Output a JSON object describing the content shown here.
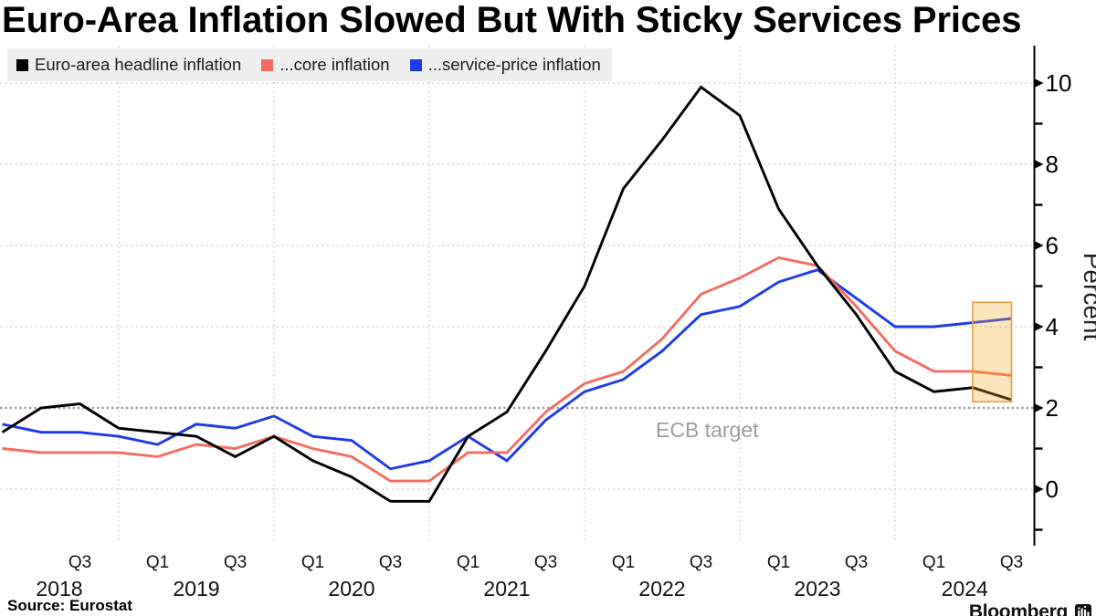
{
  "title": "Euro-Area Inflation Slowed But With Sticky Services Prices",
  "source": "Source: Eurostat",
  "brand": {
    "name": "Bloomberg"
  },
  "ecb_label": "ECB target",
  "legend": {
    "items": [
      {
        "label": "Euro-area headline inflation",
        "color": "#000000"
      },
      {
        "label": "...core inflation",
        "color": "#F66B60"
      },
      {
        "label": "...service-price inflation",
        "color": "#1E3BE8"
      }
    ]
  },
  "y_axis": {
    "title": "Percent",
    "major_ticks": [
      0,
      2,
      4,
      6,
      8,
      10
    ],
    "minor_ticks": [
      -1,
      1,
      3,
      5,
      7,
      9
    ]
  },
  "x_axis": {
    "quarter_labels": [
      "Q3",
      "Q1",
      "Q3",
      "Q1",
      "Q3",
      "Q1",
      "Q3",
      "Q1",
      "Q3",
      "Q1",
      "Q3",
      "Q1",
      "Q3"
    ],
    "year_labels": [
      "2018",
      "2019",
      "2020",
      "2021",
      "2022",
      "2023",
      "2024"
    ]
  },
  "chart_data": {
    "type": "line",
    "x": [
      "2018-03",
      "2018-06",
      "2018-09",
      "2018-12",
      "2019-03",
      "2019-06",
      "2019-09",
      "2019-12",
      "2020-03",
      "2020-06",
      "2020-09",
      "2020-12",
      "2021-03",
      "2021-06",
      "2021-09",
      "2021-12",
      "2022-03",
      "2022-06",
      "2022-09",
      "2022-12",
      "2023-03",
      "2023-06",
      "2023-09",
      "2023-12",
      "2024-03",
      "2024-06",
      "2024-08"
    ],
    "series": [
      {
        "name": "Euro-area headline inflation",
        "color": "#000000",
        "values": [
          1.4,
          2.0,
          2.1,
          1.5,
          1.4,
          1.3,
          0.8,
          1.3,
          0.7,
          0.3,
          -0.3,
          -0.3,
          1.3,
          1.9,
          3.4,
          5.0,
          7.4,
          8.6,
          9.9,
          9.2,
          6.9,
          5.5,
          4.3,
          2.9,
          2.4,
          2.5,
          2.2
        ]
      },
      {
        "name": "...core inflation",
        "color": "#F66B60",
        "values": [
          1.0,
          0.9,
          0.9,
          0.9,
          0.8,
          1.1,
          1.0,
          1.3,
          1.0,
          0.8,
          0.2,
          0.2,
          0.9,
          0.9,
          1.9,
          2.6,
          2.9,
          3.7,
          4.8,
          5.2,
          5.7,
          5.5,
          4.5,
          3.4,
          2.9,
          2.9,
          2.8
        ]
      },
      {
        "name": "...service-price inflation",
        "color": "#1E3BE8",
        "values": [
          1.6,
          1.4,
          1.4,
          1.3,
          1.1,
          1.6,
          1.5,
          1.8,
          1.3,
          1.2,
          0.5,
          0.7,
          1.3,
          0.7,
          1.7,
          2.4,
          2.7,
          3.4,
          4.3,
          4.5,
          5.1,
          5.4,
          4.7,
          4.0,
          4.0,
          4.1,
          4.2
        ]
      }
    ],
    "ylim": [
      -1.3,
      11
    ],
    "ecb_target_value": 2,
    "highlight_box": {
      "x_from": "2024-06",
      "x_to": "2024-08",
      "y_from": 2.15,
      "y_to": 4.6,
      "fill": "#F5A623",
      "fill_opacity": 0.3,
      "border": "#E2A13F"
    }
  }
}
